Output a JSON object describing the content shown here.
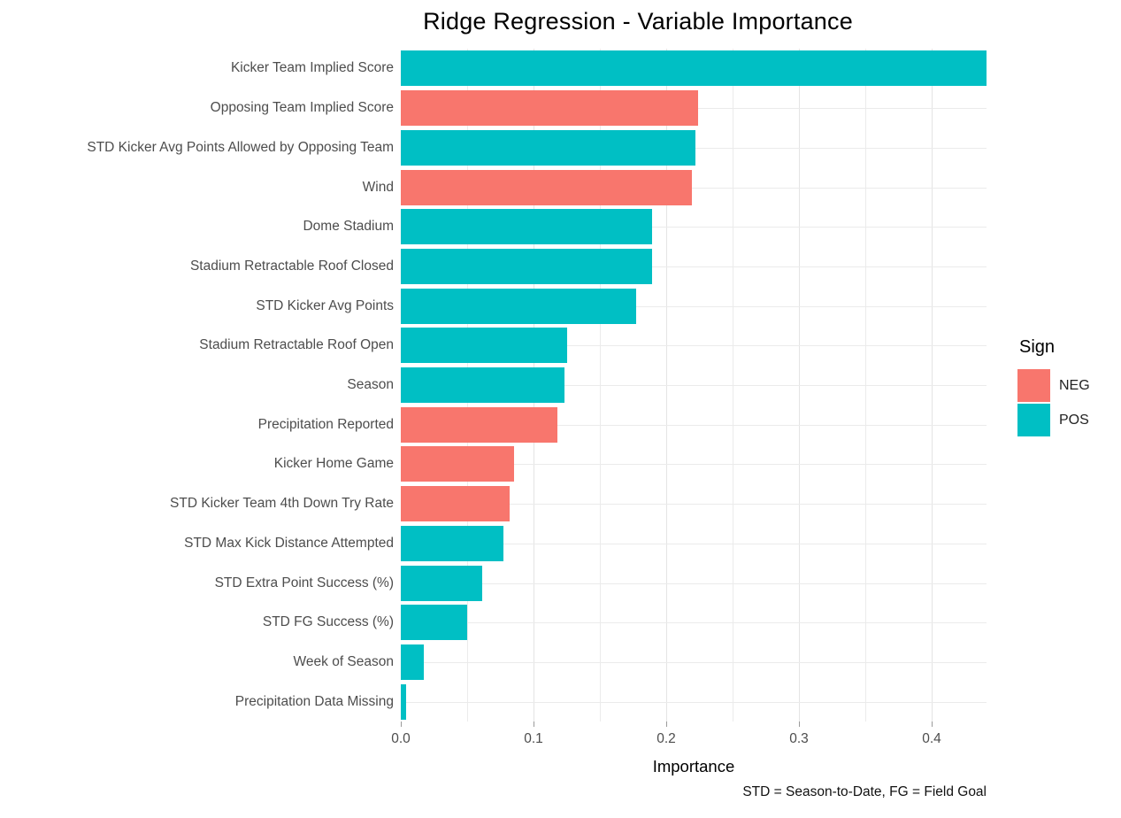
{
  "title": "Ridge Regression - Variable Importance",
  "chart_data": {
    "type": "bar",
    "orientation": "horizontal",
    "title": "Ridge Regression - Variable Importance",
    "xlabel": "Importance",
    "ylabel": "",
    "caption": "STD = Season-to-Date, FG = Field Goal",
    "xlim": [
      0,
      0.45
    ],
    "x_ticks": [
      0.0,
      0.1,
      0.2,
      0.3,
      0.4
    ],
    "x_tick_labels": [
      "0.0",
      "0.1",
      "0.2",
      "0.3",
      "0.4"
    ],
    "minor_grid_step": 0.05,
    "grid": "on",
    "bar_order": "descending importance, top to bottom",
    "items": [
      {
        "label": "Kicker Team Implied Score",
        "value": 0.441,
        "sign": "POS"
      },
      {
        "label": "Opposing Team Implied Score",
        "value": 0.224,
        "sign": "NEG"
      },
      {
        "label": "STD Kicker Avg Points Allowed by Opposing Team",
        "value": 0.222,
        "sign": "POS"
      },
      {
        "label": "Wind",
        "value": 0.219,
        "sign": "NEG"
      },
      {
        "label": "Dome Stadium",
        "value": 0.189,
        "sign": "POS"
      },
      {
        "label": "Stadium Retractable Roof Closed",
        "value": 0.189,
        "sign": "POS"
      },
      {
        "label": "STD Kicker Avg Points",
        "value": 0.177,
        "sign": "POS"
      },
      {
        "label": "Stadium Retractable Roof Open",
        "value": 0.125,
        "sign": "POS"
      },
      {
        "label": "Season",
        "value": 0.123,
        "sign": "POS"
      },
      {
        "label": "Precipitation Reported",
        "value": 0.118,
        "sign": "NEG"
      },
      {
        "label": "Kicker Home Game",
        "value": 0.085,
        "sign": "NEG"
      },
      {
        "label": "STD Kicker Team 4th Down Try Rate",
        "value": 0.082,
        "sign": "NEG"
      },
      {
        "label": "STD Max Kick Distance Attempted",
        "value": 0.077,
        "sign": "POS"
      },
      {
        "label": "STD Extra Point Success (%)",
        "value": 0.061,
        "sign": "POS"
      },
      {
        "label": "STD FG Success (%)",
        "value": 0.05,
        "sign": "POS"
      },
      {
        "label": "Week of Season",
        "value": 0.017,
        "sign": "POS"
      },
      {
        "label": "Precipitation Data Missing",
        "value": 0.004,
        "sign": "POS"
      }
    ],
    "legend": {
      "title": "Sign",
      "position": "right",
      "entries": [
        {
          "label": "NEG",
          "color": "#F8766D"
        },
        {
          "label": "POS",
          "color": "#00BFC4"
        }
      ]
    },
    "colors": {
      "NEG": "#F8766D",
      "POS": "#00BFC4",
      "gridline": "#EBEBEB",
      "axis_text": "#4D4D4D",
      "background": "#FFFFFF"
    }
  }
}
